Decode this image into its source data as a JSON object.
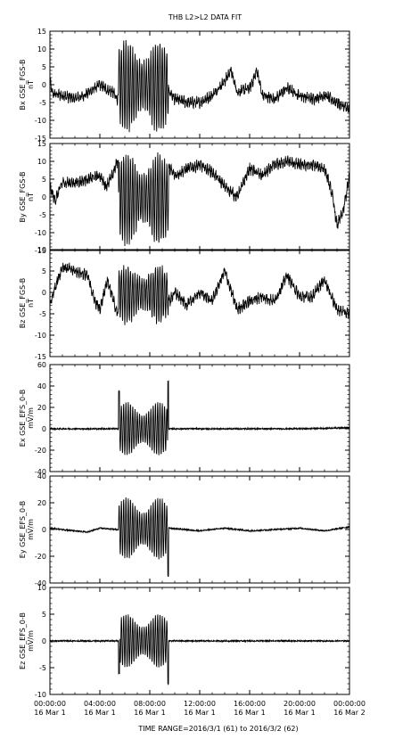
{
  "title": "THB  L2>L2 DATA  FIT",
  "footer": "TIME RANGE=2016/3/1 (61) to 2016/3/2 (62)",
  "chart_data": {
    "type": "line",
    "x_ticks": [
      {
        "t": 0,
        "time": "00:00:00",
        "date": "16 Mar  1"
      },
      {
        "t": 4,
        "time": "04:00:00",
        "date": "16 Mar  1"
      },
      {
        "t": 8,
        "time": "08:00:00",
        "date": "16 Mar  1"
      },
      {
        "t": 12,
        "time": "12:00:00",
        "date": "16 Mar  1"
      },
      {
        "t": 16,
        "time": "16:00:00",
        "date": "16 Mar  1"
      },
      {
        "t": 20,
        "time": "20:00:00",
        "date": "16 Mar  1"
      },
      {
        "t": 24,
        "time": "00:00:00",
        "date": "16 Mar  2"
      }
    ],
    "xlim": [
      "2016-03-01 00:00:00",
      "2016-03-02 00:00:00"
    ],
    "panels": [
      {
        "ylabel": [
          "Bx  GSE_FGS-B",
          "nT"
        ],
        "ylim": [
          -15,
          15
        ],
        "yticks": [
          -15,
          -10,
          -5,
          0,
          5,
          10,
          15
        ],
        "wave": {
          "start": 5.5,
          "end": 9.5,
          "amp_hi": 12,
          "amp_lo": -13
        },
        "points": [
          [
            0,
            1
          ],
          [
            0.2,
            -2.5
          ],
          [
            1,
            -3
          ],
          [
            2,
            -4
          ],
          [
            3,
            -2.5
          ],
          [
            4,
            0
          ],
          [
            4.6,
            -1.5
          ],
          [
            5,
            -2
          ],
          [
            5.4,
            -4
          ],
          [
            9.6,
            -2
          ],
          [
            10,
            -4
          ],
          [
            11,
            -5
          ],
          [
            12,
            -5
          ],
          [
            13,
            -3
          ],
          [
            14,
            1
          ],
          [
            14.5,
            4
          ],
          [
            15,
            -2
          ],
          [
            16,
            -1
          ],
          [
            16.6,
            4
          ],
          [
            17,
            -3
          ],
          [
            18,
            -4
          ],
          [
            19,
            -1
          ],
          [
            20,
            -3
          ],
          [
            21,
            -4
          ],
          [
            22,
            -3
          ],
          [
            23,
            -5
          ],
          [
            24,
            -7
          ]
        ]
      },
      {
        "ylabel": [
          "By  GSE_FGS-B",
          "nT"
        ],
        "ylim": [
          -15,
          15
        ],
        "yticks": [
          -15,
          -10,
          -5,
          0,
          5,
          10,
          15
        ],
        "wave": {
          "start": 5.5,
          "end": 9.5,
          "amp_hi": 12,
          "amp_lo": -13
        },
        "points": [
          [
            0,
            3
          ],
          [
            0.4,
            -1
          ],
          [
            1,
            4
          ],
          [
            2,
            4
          ],
          [
            3,
            5
          ],
          [
            4,
            6
          ],
          [
            4.5,
            3
          ],
          [
            5,
            6
          ],
          [
            5.4,
            10
          ],
          [
            9.6,
            8
          ],
          [
            10,
            6
          ],
          [
            11,
            8
          ],
          [
            12,
            9
          ],
          [
            13,
            7
          ],
          [
            14,
            3
          ],
          [
            15,
            0
          ],
          [
            16,
            8
          ],
          [
            17,
            6
          ],
          [
            18,
            9
          ],
          [
            19,
            10
          ],
          [
            20,
            9
          ],
          [
            21,
            9
          ],
          [
            22,
            8
          ],
          [
            22.6,
            1
          ],
          [
            23,
            -8
          ],
          [
            23.5,
            -4
          ],
          [
            24,
            6
          ]
        ]
      },
      {
        "ylabel": [
          "Bz  GSE_FGS-B",
          "nT"
        ],
        "ylim": [
          -15,
          10
        ],
        "yticks": [
          -15,
          -10,
          -5,
          0,
          5,
          10
        ],
        "wave": {
          "start": 5.5,
          "end": 9.5,
          "amp_hi": 6,
          "amp_lo": -7
        },
        "points": [
          [
            0,
            -3
          ],
          [
            0.5,
            2
          ],
          [
            1,
            6
          ],
          [
            2,
            5
          ],
          [
            3,
            4
          ],
          [
            3.6,
            -2
          ],
          [
            4,
            -4
          ],
          [
            4.6,
            3
          ],
          [
            5,
            -1
          ],
          [
            5.4,
            -5
          ],
          [
            9.6,
            -2
          ],
          [
            10,
            0
          ],
          [
            11,
            -3
          ],
          [
            12,
            0
          ],
          [
            13,
            -2
          ],
          [
            14,
            5
          ],
          [
            15,
            -4
          ],
          [
            16,
            -2
          ],
          [
            17,
            -1
          ],
          [
            18,
            -2
          ],
          [
            19,
            4
          ],
          [
            20,
            -1
          ],
          [
            21,
            -1
          ],
          [
            22,
            3
          ],
          [
            23,
            -4
          ],
          [
            24,
            -5
          ]
        ]
      },
      {
        "ylabel": [
          "Ex  GSE_EFS_0-B",
          "mV/m"
        ],
        "ylim": [
          -40,
          60
        ],
        "yticks": [
          -40,
          -20,
          0,
          20,
          40,
          60
        ],
        "wave": {
          "start": 5.5,
          "end": 9.5,
          "amp_hi": 25,
          "amp_lo": -25,
          "spike_start": 35,
          "spike_end": 44
        },
        "points": [
          [
            0,
            0
          ],
          [
            5.4,
            0
          ],
          [
            9.6,
            0
          ],
          [
            12,
            0
          ],
          [
            16,
            0
          ],
          [
            20,
            0
          ],
          [
            24,
            1
          ]
        ]
      },
      {
        "ylabel": [
          "Ey  GSE_EFS_0-B",
          "mV/m"
        ],
        "ylim": [
          -40,
          40
        ],
        "yticks": [
          -40,
          -20,
          0,
          20,
          40
        ],
        "wave": {
          "start": 5.5,
          "end": 9.5,
          "amp_hi": 24,
          "amp_lo": -22,
          "spike_end": -35
        },
        "points": [
          [
            0,
            1
          ],
          [
            2,
            -1
          ],
          [
            3,
            -2
          ],
          [
            4,
            1
          ],
          [
            5.4,
            0
          ],
          [
            9.6,
            1
          ],
          [
            12,
            -1
          ],
          [
            14,
            1
          ],
          [
            16,
            -1
          ],
          [
            18,
            0
          ],
          [
            20,
            1
          ],
          [
            22,
            -1
          ],
          [
            24,
            2
          ]
        ]
      },
      {
        "ylabel": [
          "Ez  GSE_EFS_0-B",
          "mV/m"
        ],
        "ylim": [
          -10,
          10
        ],
        "yticks": [
          -10,
          -5,
          0,
          5,
          10
        ],
        "wave": {
          "start": 5.5,
          "end": 9.5,
          "amp_hi": 5,
          "amp_lo": -5,
          "spike_start": -6,
          "spike_end": -8
        },
        "points": [
          [
            0,
            0
          ],
          [
            5.4,
            0
          ],
          [
            9.6,
            0
          ],
          [
            12,
            0
          ],
          [
            16,
            0
          ],
          [
            20,
            0
          ],
          [
            24,
            0
          ]
        ]
      }
    ]
  }
}
